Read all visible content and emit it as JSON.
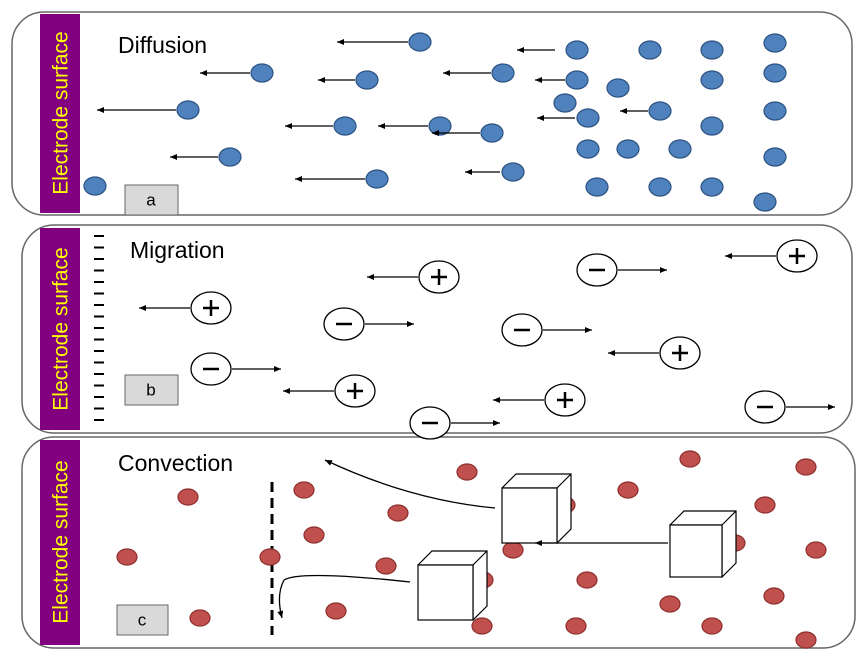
{
  "panels": [
    {
      "electrode": "Electrode surface",
      "title": "Diffusion",
      "tag": "a"
    },
    {
      "electrode": "Electrode surface",
      "title": "Migration",
      "tag": "b"
    },
    {
      "electrode": "Electrode surface",
      "title": "Convection",
      "tag": "c"
    }
  ]
}
